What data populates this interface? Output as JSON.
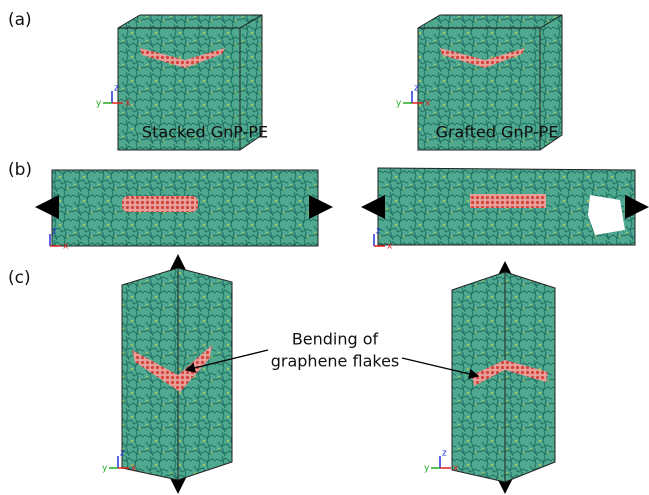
{
  "panels": {
    "a": "(a)",
    "b": "(b)",
    "c": "(c)"
  },
  "captions": [
    "Stacked GnP-PE",
    "Grafted GnP-PE"
  ],
  "annotation": [
    "Bending of",
    "graphene flakes"
  ],
  "triads": [
    {
      "z": "z",
      "y": "y",
      "x": "x"
    },
    {
      "z": "z",
      "y": "y",
      "x": "x"
    },
    {
      "z": "z",
      "x": "x"
    },
    {
      "z": "z",
      "x": "x"
    },
    {
      "z": "z",
      "y": "y",
      "x": "x"
    },
    {
      "z": "z",
      "y": "y",
      "x": "x"
    }
  ]
}
